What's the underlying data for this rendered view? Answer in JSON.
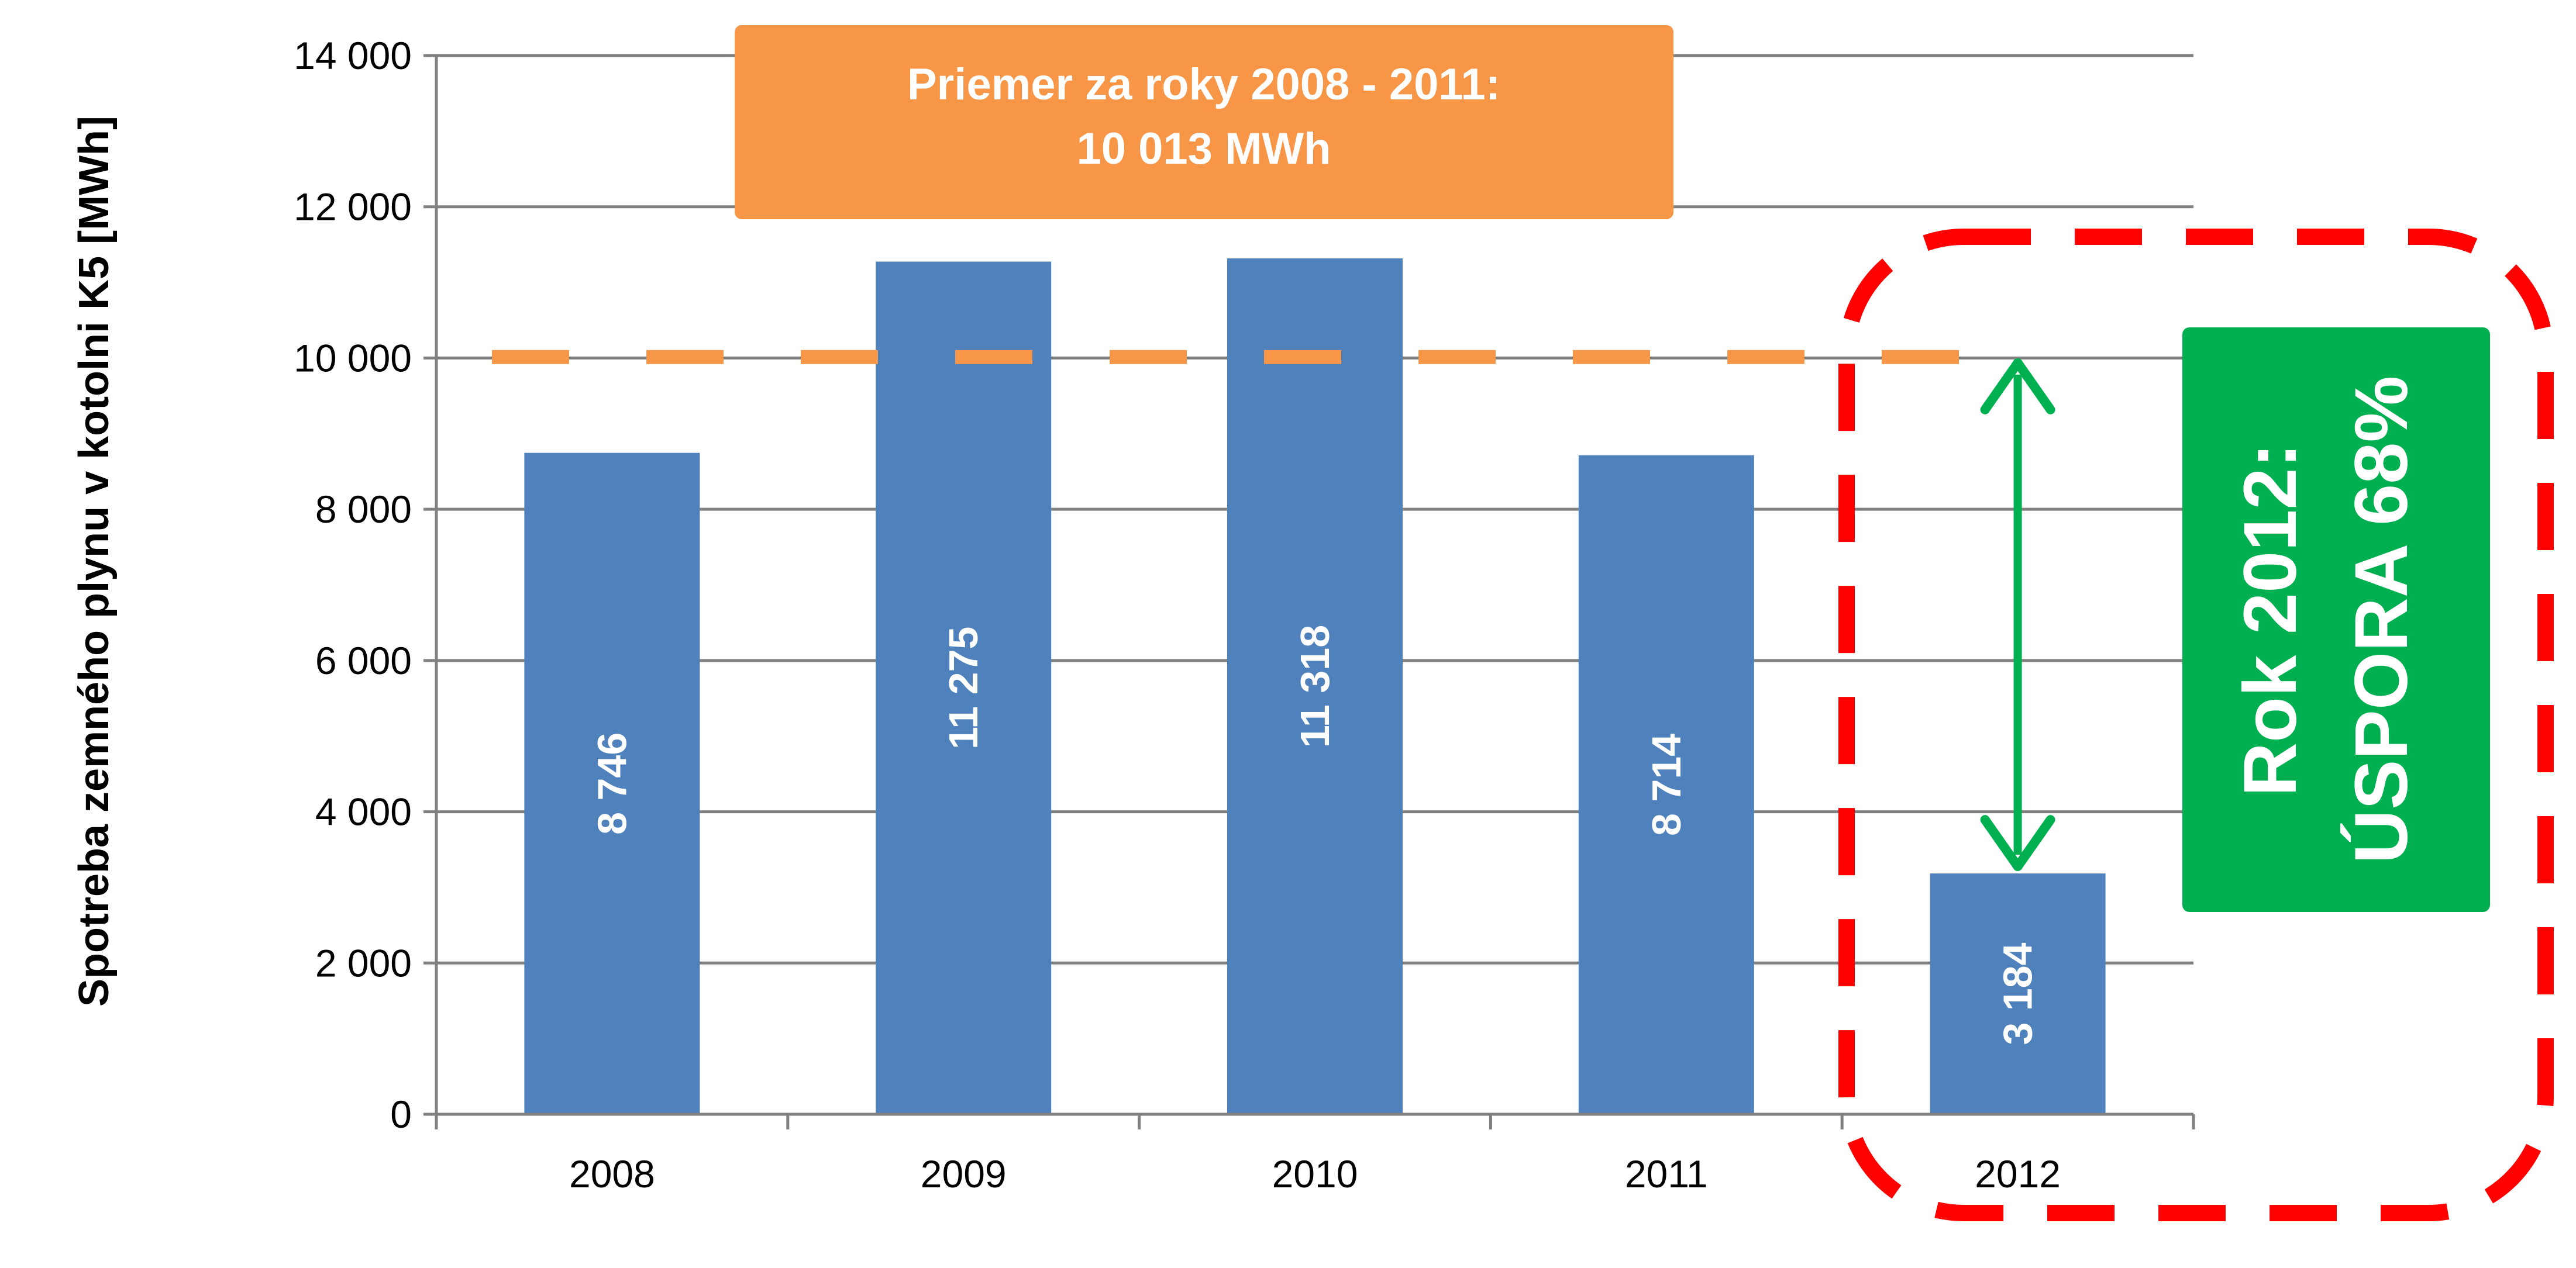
{
  "chart_data": {
    "type": "bar",
    "categories": [
      "2008",
      "2009",
      "2010",
      "2011",
      "2012"
    ],
    "values": [
      8746,
      11275,
      11318,
      8714,
      3184
    ],
    "data_labels": [
      "8 746",
      "11 275",
      "11 318",
      "8 714",
      "3 184"
    ],
    "ylabel": "Spotreba zemného plynu v kotolni K5 [MWh]",
    "xlabel": "",
    "ylim": [
      0,
      14000
    ],
    "yticks": [
      0,
      2000,
      4000,
      6000,
      8000,
      10000,
      12000,
      14000
    ],
    "ytick_labels": [
      "0",
      "2 000",
      "4 000",
      "6 000",
      "8 000",
      "10 000",
      "12 000",
      "14 000"
    ],
    "grid": true,
    "average_line": {
      "value": 10013,
      "label_line1": "Priemer za roky 2008 - 2011:",
      "label_line2": "10 013 MWh"
    },
    "savings_box": {
      "line1": "Rok 2012:",
      "line2": "ÚSPORA 68%"
    }
  },
  "colors": {
    "bar": "#4F81BD",
    "average_line": "#F79646",
    "average_box": "#F79646",
    "savings_box": "#00B050",
    "arrow": "#00B050",
    "highlight_border": "#FF0000",
    "grid": "#808080"
  }
}
